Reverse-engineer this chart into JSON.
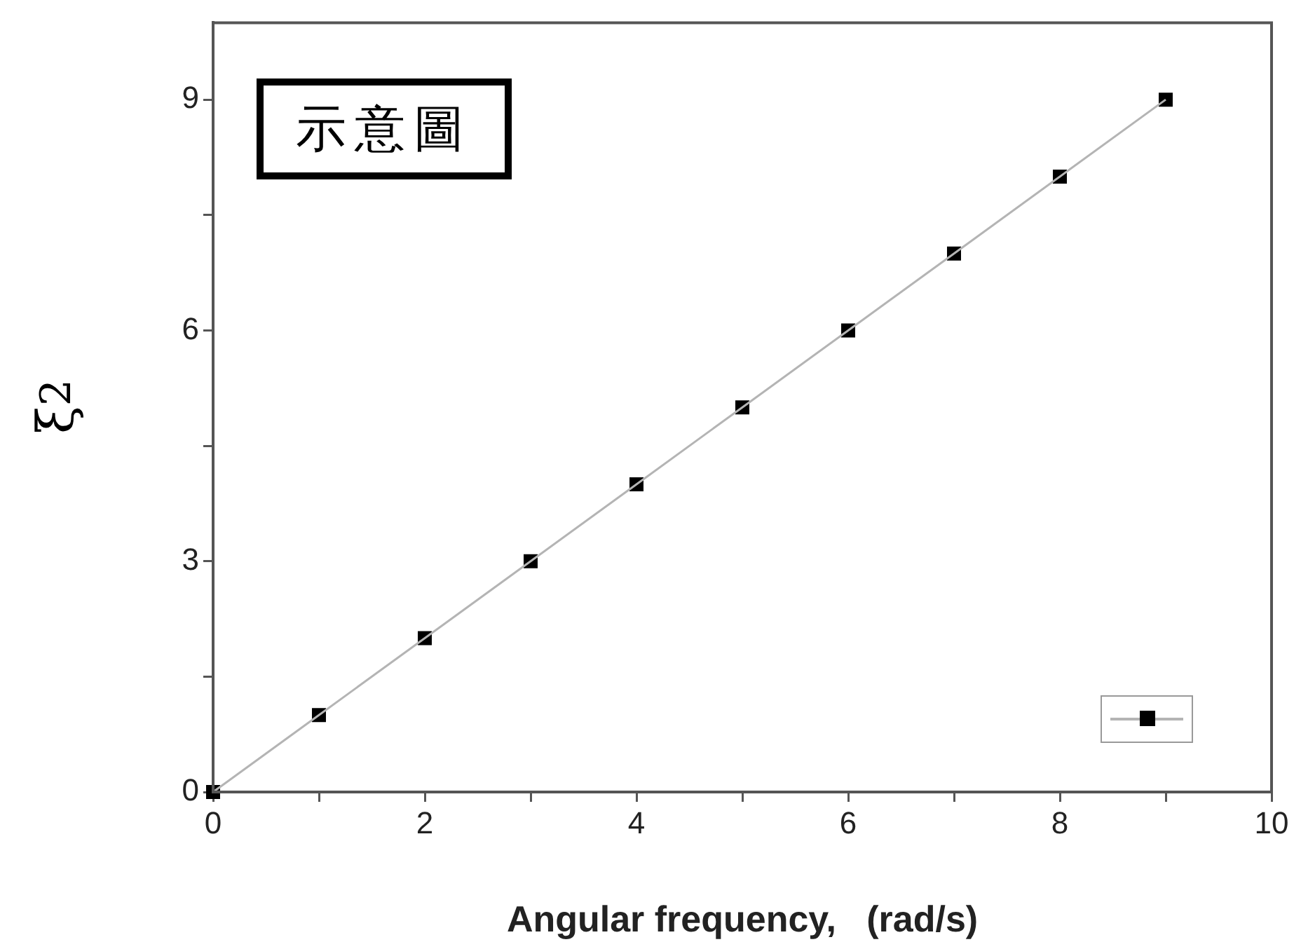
{
  "chart_data": {
    "type": "line",
    "xlabel": "Angular frequency,   (rad/s)",
    "ylabel": "ξ$^{2}$",
    "annotations": [
      "示意圖"
    ],
    "x": [
      0,
      1,
      2,
      3,
      4,
      5,
      6,
      7,
      8,
      9
    ],
    "series": [
      {
        "color": "#b4b4b4",
        "marker": "none",
        "values": [
          0,
          1,
          2,
          3,
          4,
          5,
          6,
          7,
          8,
          9
        ]
      },
      {
        "type": "scatter",
        "color": "#000000",
        "marker": "square",
        "values": [
          0,
          1,
          2,
          3,
          4,
          5,
          6,
          7,
          8,
          9
        ]
      }
    ],
    "xlim": [
      0,
      10
    ],
    "xticks": [
      0,
      {
        "value": 1,
        "label": null
      },
      2,
      {
        "value": 3,
        "label": null
      },
      4,
      {
        "value": 5,
        "label": null
      },
      6,
      {
        "value": 7,
        "label": null
      },
      8,
      {
        "value": 9,
        "label": null
      },
      10
    ],
    "ylim": [
      0,
      10
    ],
    "yticks": [
      0,
      {
        "value": 1.5,
        "label": null
      },
      3,
      {
        "value": 4.5,
        "label": null
      },
      6,
      {
        "value": 7.5,
        "label": null
      },
      9
    ],
    "grid": false,
    "line_style": "solid"
  }
}
